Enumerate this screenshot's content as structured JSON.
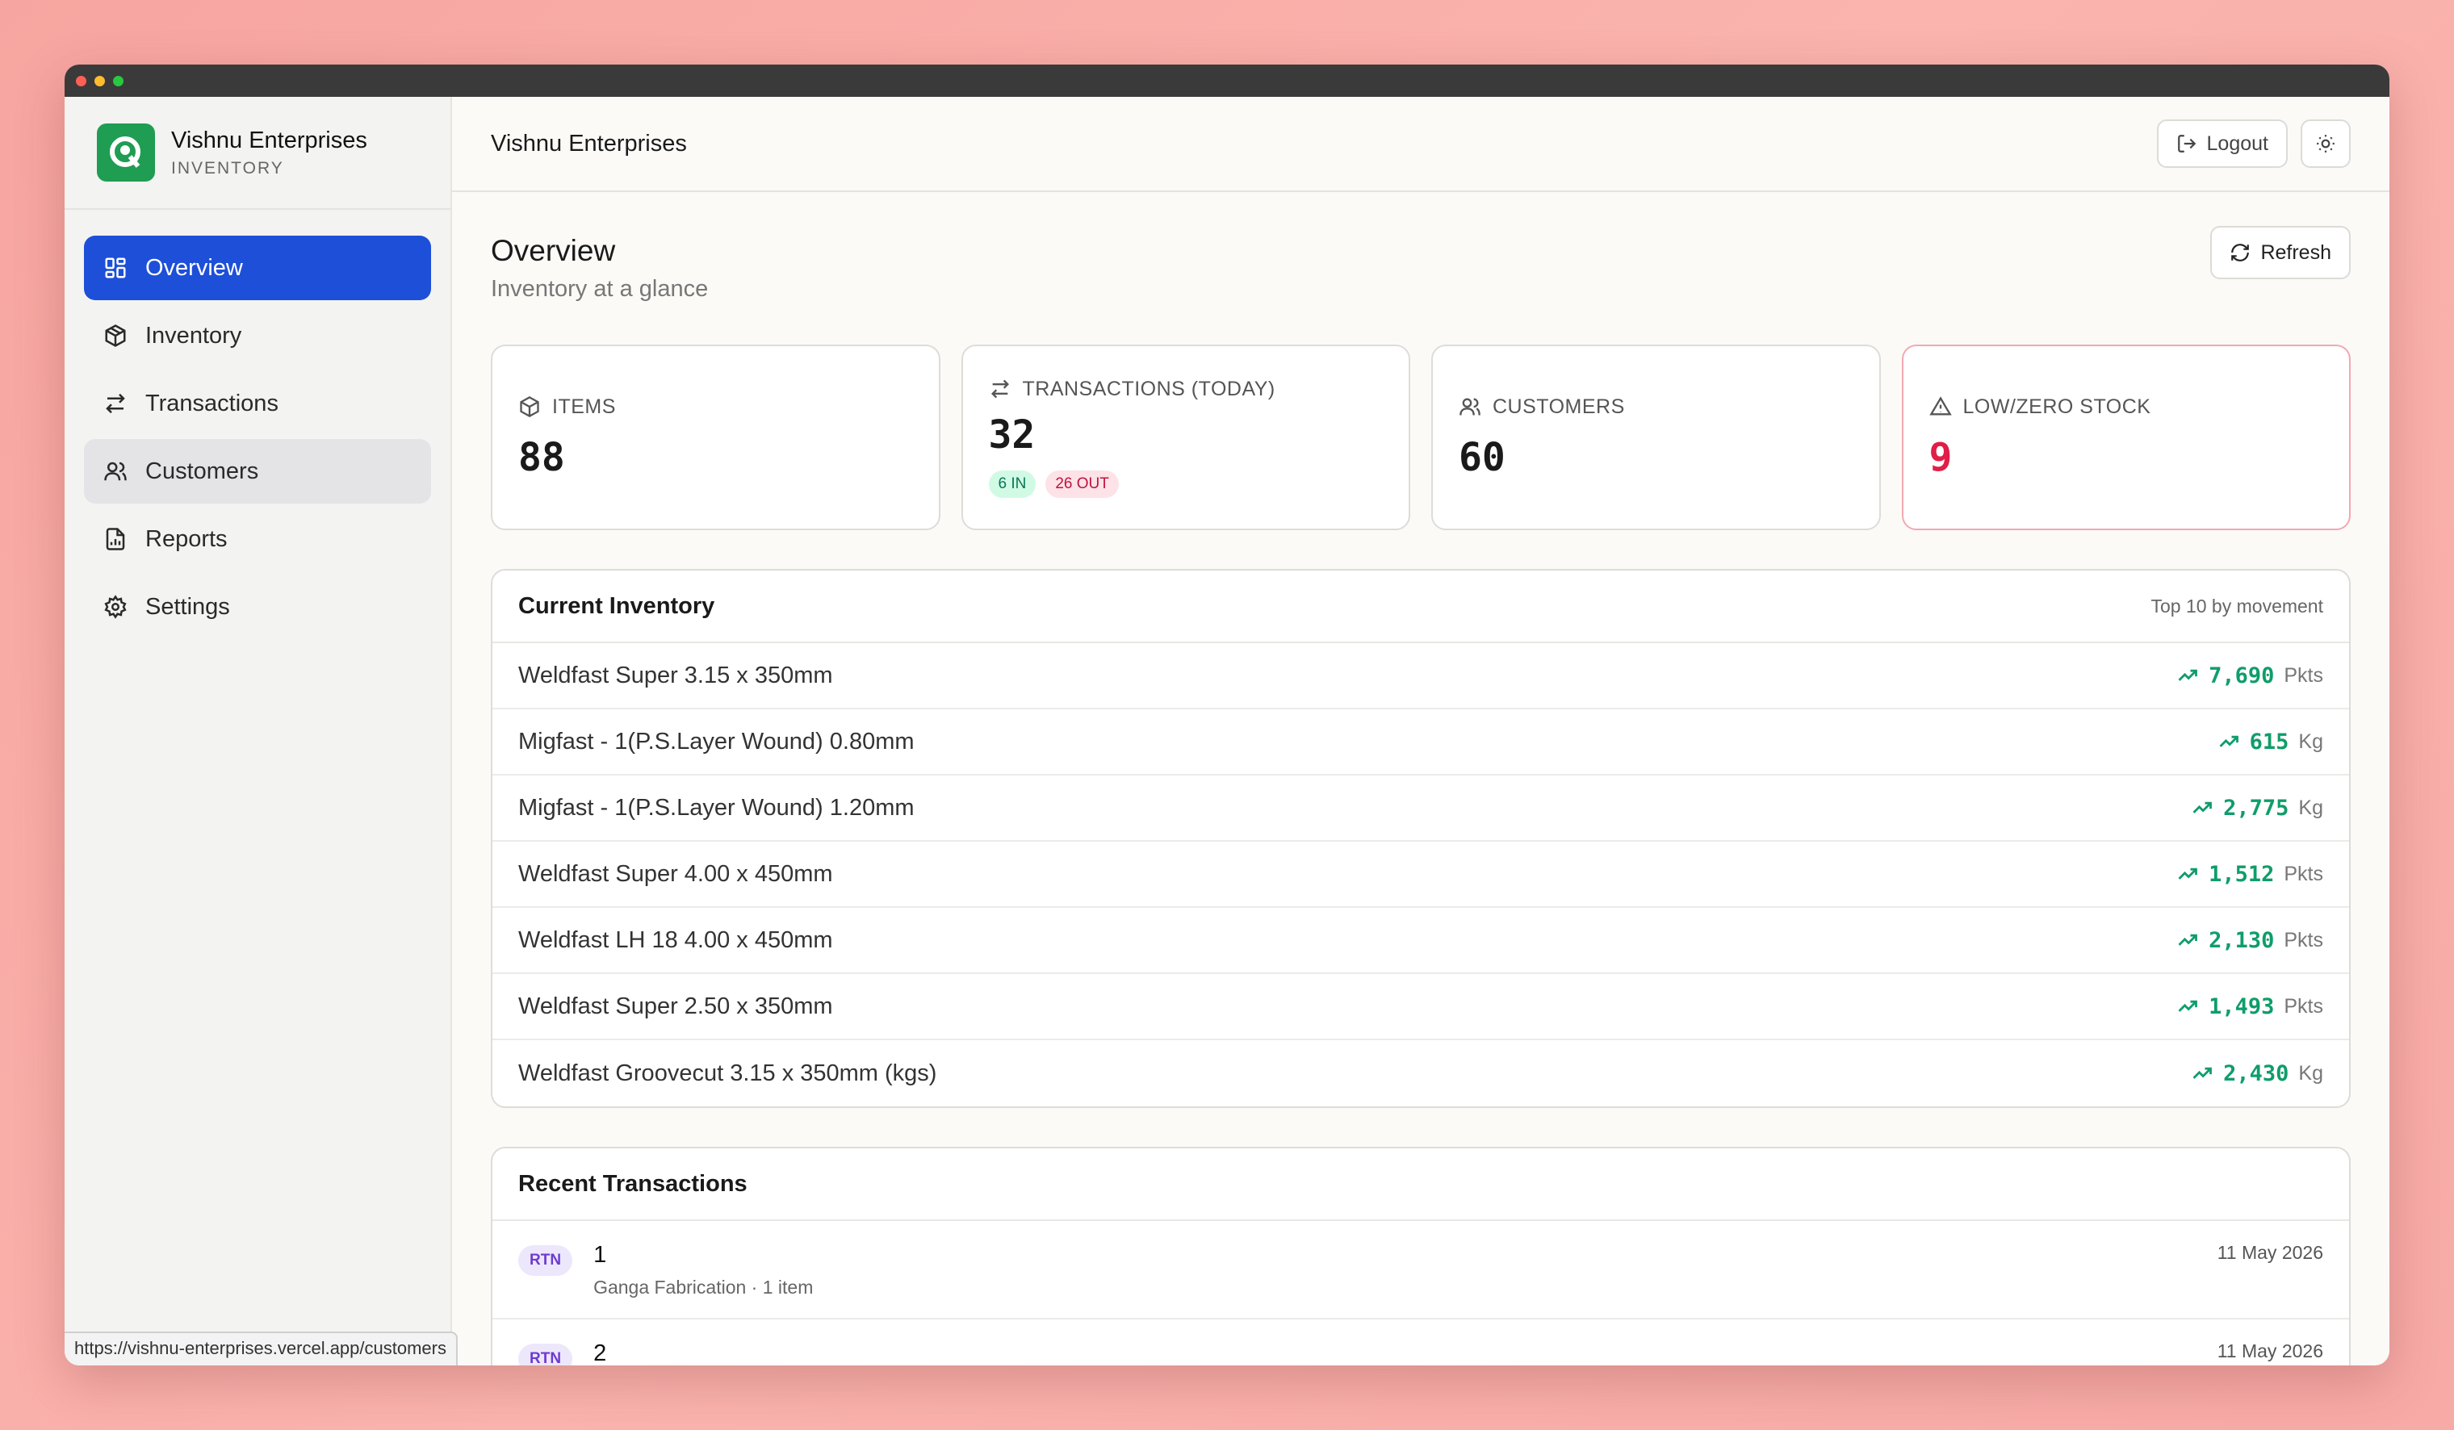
{
  "brand": {
    "name": "Vishnu Enterprises",
    "sub": "INVENTORY"
  },
  "nav": [
    {
      "label": "Overview",
      "icon": "grid-icon",
      "state": "active"
    },
    {
      "label": "Inventory",
      "icon": "box-icon",
      "state": ""
    },
    {
      "label": "Transactions",
      "icon": "arrows-icon",
      "state": ""
    },
    {
      "label": "Customers",
      "icon": "users-icon",
      "state": "hover"
    },
    {
      "label": "Reports",
      "icon": "file-chart-icon",
      "state": ""
    },
    {
      "label": "Settings",
      "icon": "gear-icon",
      "state": ""
    }
  ],
  "topbar": {
    "title": "Vishnu Enterprises",
    "logout": "Logout"
  },
  "page": {
    "title": "Overview",
    "subtitle": "Inventory at a glance",
    "refresh": "Refresh"
  },
  "stats": {
    "items": {
      "label": "ITEMS",
      "value": "88"
    },
    "transactions": {
      "label": "TRANSACTIONS (TODAY)",
      "value": "32",
      "in": "6 IN",
      "out": "26 OUT"
    },
    "customers": {
      "label": "CUSTOMERS",
      "value": "60"
    },
    "low": {
      "label": "LOW/ZERO STOCK",
      "value": "9"
    }
  },
  "inventory": {
    "title": "Current Inventory",
    "meta": "Top 10 by movement",
    "rows": [
      {
        "name": "Weldfast Super 3.15 x 350mm",
        "qty": "7,690",
        "unit": "Pkts"
      },
      {
        "name": "Migfast - 1(P.S.Layer Wound) 0.80mm",
        "qty": "615",
        "unit": "Kg"
      },
      {
        "name": "Migfast - 1(P.S.Layer Wound) 1.20mm",
        "qty": "2,775",
        "unit": "Kg"
      },
      {
        "name": "Weldfast Super 4.00 x 450mm",
        "qty": "1,512",
        "unit": "Pkts"
      },
      {
        "name": "Weldfast LH 18 4.00 x 450mm",
        "qty": "2,130",
        "unit": "Pkts"
      },
      {
        "name": "Weldfast Super 2.50 x 350mm",
        "qty": "1,493",
        "unit": "Pkts"
      },
      {
        "name": "Weldfast Groovecut 3.15 x 350mm (kgs)",
        "qty": "2,430",
        "unit": "Kg"
      }
    ]
  },
  "transactions": {
    "title": "Recent Transactions",
    "rows": [
      {
        "badge": "RTN",
        "num": "1",
        "sub": "Ganga Fabrication · 1 item",
        "date": "11 May 2026"
      },
      {
        "badge": "RTN",
        "num": "2",
        "sub": "",
        "date": "11 May 2026"
      }
    ]
  },
  "status_url": "https://vishnu-enterprises.vercel.app/customers",
  "colors": {
    "accent": "#1d4fd8",
    "positive": "#0f9d6b",
    "danger": "#e11d48"
  }
}
